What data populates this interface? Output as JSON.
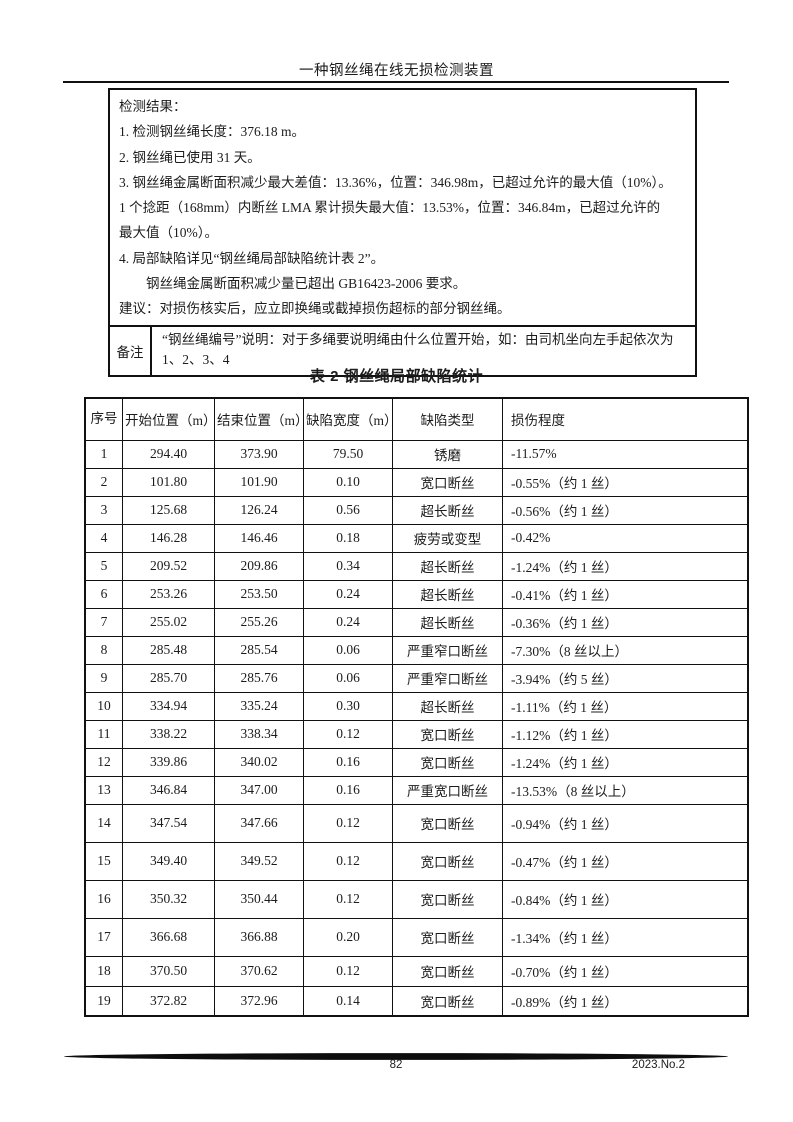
{
  "header": {
    "title": "一种钢丝绳在线无损检测装置"
  },
  "result_box": {
    "lines": [
      {
        "text": "检测结果：",
        "indent": false
      },
      {
        "text": "1. 检测钢丝绳长度：376.18 m。",
        "indent": false
      },
      {
        "text": "2. 钢丝绳已使用 31 天。",
        "indent": false
      },
      {
        "text": "3. 钢丝绳金属断面积减少最大差值：13.36%，位置：346.98m，已超过允许的最大值（10%）。",
        "indent": false
      },
      {
        "text": "1 个捻距（168mm）内断丝 LMA 累计损失最大值：13.53%，位置：346.84m，已超过允许的",
        "indent": false
      },
      {
        "text": "最大值（10%）。",
        "indent": false
      },
      {
        "text": "4. 局部缺陷详见“钢丝绳局部缺陷统计表 2”。",
        "indent": false
      },
      {
        "text": "钢丝绳金属断面积减少量已超出 GB16423-2006 要求。",
        "indent": true
      },
      {
        "text": "建议：对损伤核实后，应立即换绳或截掉损伤超标的部分钢丝绳。",
        "indent": false
      }
    ],
    "remark_label": "备注",
    "remark_text": "“钢丝绳编号”说明：对于多绳要说明绳由什么位置开始，如：由司机坐向左手起依次为 1、2、3、4"
  },
  "table": {
    "title": "表 2 钢丝绳局部缺陷统计",
    "columns": [
      "序号",
      "开始位置（m）",
      "结束位置（m）",
      "缺陷宽度（m）",
      "缺陷类型",
      "损伤程度"
    ],
    "rows": [
      [
        "1",
        "294.40",
        "373.90",
        "79.50",
        "锈磨",
        "-11.57%"
      ],
      [
        "2",
        "101.80",
        "101.90",
        "0.10",
        "宽口断丝",
        "-0.55%（约 1 丝）"
      ],
      [
        "3",
        "125.68",
        "126.24",
        "0.56",
        "超长断丝",
        "-0.56%（约 1 丝）"
      ],
      [
        "4",
        "146.28",
        "146.46",
        "0.18",
        "疲劳或变型",
        "-0.42%"
      ],
      [
        "5",
        "209.52",
        "209.86",
        "0.34",
        "超长断丝",
        "-1.24%（约 1 丝）"
      ],
      [
        "6",
        "253.26",
        "253.50",
        "0.24",
        "超长断丝",
        "-0.41%（约 1 丝）"
      ],
      [
        "7",
        "255.02",
        "255.26",
        "0.24",
        "超长断丝",
        "-0.36%（约 1 丝）"
      ],
      [
        "8",
        "285.48",
        "285.54",
        "0.06",
        "严重窄口断丝",
        "-7.30%（8 丝以上）"
      ],
      [
        "9",
        "285.70",
        "285.76",
        "0.06",
        "严重窄口断丝",
        "-3.94%（约 5 丝）"
      ],
      [
        "10",
        "334.94",
        "335.24",
        "0.30",
        "超长断丝",
        "-1.11%（约 1 丝）"
      ],
      [
        "11",
        "338.22",
        "338.34",
        "0.12",
        "宽口断丝",
        "-1.12%（约 1 丝）"
      ],
      [
        "12",
        "339.86",
        "340.02",
        "0.16",
        "宽口断丝",
        "-1.24%（约 1 丝）"
      ],
      [
        "13",
        "346.84",
        "347.00",
        "0.16",
        "严重宽口断丝",
        "-13.53%（8 丝以上）"
      ],
      [
        "14",
        "347.54",
        "347.66",
        "0.12",
        "宽口断丝",
        "-0.94%（约 1 丝）"
      ],
      [
        "15",
        "349.40",
        "349.52",
        "0.12",
        "宽口断丝",
        "-0.47%（约 1 丝）"
      ],
      [
        "16",
        "350.32",
        "350.44",
        "0.12",
        "宽口断丝",
        "-0.84%（约 1 丝）"
      ],
      [
        "17",
        "366.68",
        "366.88",
        "0.20",
        "宽口断丝",
        "-1.34%（约 1 丝）"
      ],
      [
        "18",
        "370.50",
        "370.62",
        "0.12",
        "宽口断丝",
        "-0.70%（约 1 丝）"
      ],
      [
        "19",
        "372.82",
        "372.96",
        "0.14",
        "宽口断丝",
        "-0.89%（约 1 丝）"
      ]
    ]
  },
  "footer": {
    "page_number": "82",
    "issue": "2023.No.2"
  },
  "colors": {
    "text": "#1c1c1c",
    "border": "#111111",
    "background": "#ffffff"
  }
}
